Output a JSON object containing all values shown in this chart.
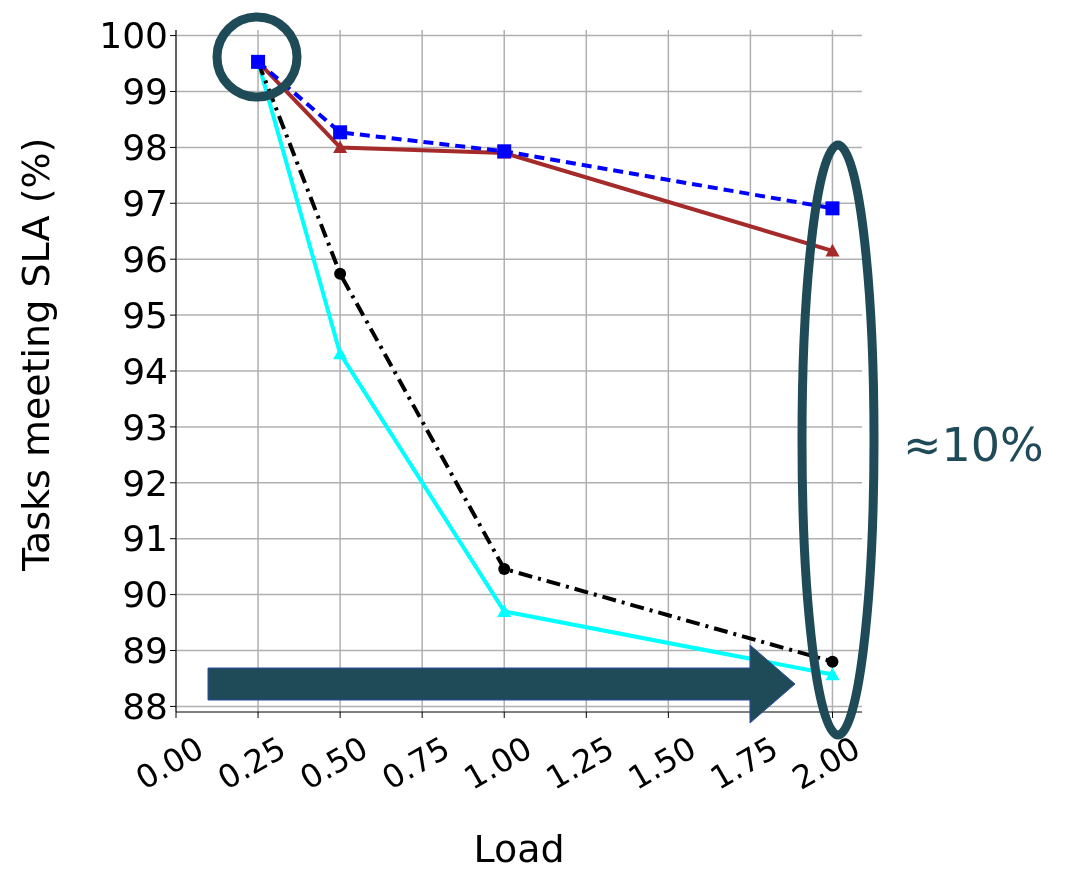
{
  "chart_data": {
    "type": "line",
    "xlabel": "Load",
    "ylabel": "Tasks meeting SLA (%)",
    "x": [
      0.25,
      0.5,
      1.0,
      2.0
    ],
    "series": [
      {
        "color": "#0000ff",
        "marker": "square",
        "line_style": "dashed",
        "values": [
          99.53,
          98.27,
          97.93,
          96.91
        ]
      },
      {
        "color": "#a52a2a",
        "marker": "triangle",
        "line_style": "solid",
        "values": [
          99.53,
          98.0,
          97.9,
          96.15
        ]
      },
      {
        "color": "#000000",
        "marker": "circle",
        "line_style": "dashdot",
        "values": [
          99.53,
          95.74,
          90.46,
          88.8
        ]
      },
      {
        "color": "#00ffff",
        "marker": "triangle",
        "line_style": "solid",
        "values": [
          99.53,
          94.31,
          89.7,
          88.57
        ]
      }
    ],
    "xlim": [
      0,
      2.09
    ],
    "ylim": [
      87.9,
      100.1
    ],
    "xticks": [
      {
        "value": 0,
        "label": "0.00"
      },
      {
        "value": 0.25,
        "label": "0.25"
      },
      {
        "value": 0.5,
        "label": "0.50"
      },
      {
        "value": 0.75,
        "label": "0.75"
      },
      {
        "value": 1,
        "label": "1.00"
      },
      {
        "value": 1.25,
        "label": "1.25"
      },
      {
        "value": 1.5,
        "label": "1.50"
      },
      {
        "value": 1.75,
        "label": "1.75"
      },
      {
        "value": 2,
        "label": "2.00"
      }
    ],
    "yticks": [
      88,
      89,
      90,
      91,
      92,
      93,
      94,
      95,
      96,
      97,
      98,
      99,
      100
    ],
    "grid": true,
    "legend": false,
    "annotations": [
      "≈10%"
    ]
  }
}
